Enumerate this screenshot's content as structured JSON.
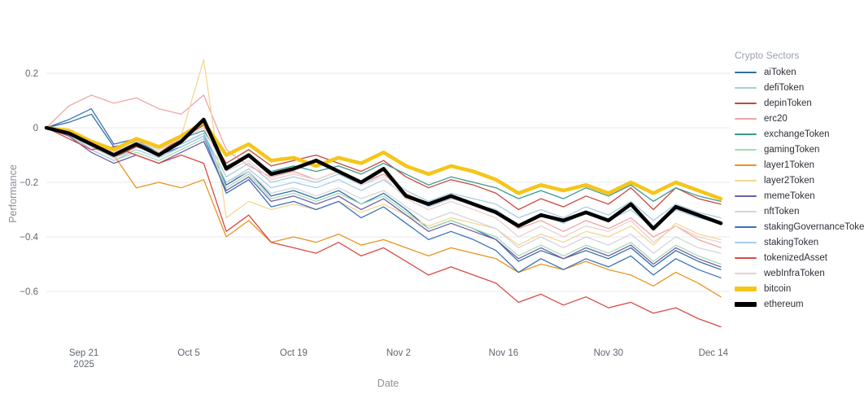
{
  "chart_data": {
    "type": "line",
    "title": "",
    "xlabel": "Date",
    "ylabel": "Performance",
    "legend_title": "Crypto Sectors",
    "x_description": "day offsets from Sep 16 2025; axis ticks show dates",
    "grid": "horizontal-only",
    "ylim": [
      -0.78,
      0.28
    ],
    "x": [
      0,
      3,
      6,
      9,
      12,
      15,
      18,
      21,
      24,
      27,
      30,
      33,
      36,
      39,
      42,
      45,
      48,
      51,
      54,
      57,
      60,
      63,
      66,
      69,
      72,
      75,
      78,
      81,
      84,
      87,
      90
    ],
    "x_ticks": [
      {
        "day": 5,
        "label": "Sep 21",
        "sublabel": "2025"
      },
      {
        "day": 19,
        "label": "Oct 5"
      },
      {
        "day": 33,
        "label": "Oct 19"
      },
      {
        "day": 47,
        "label": "Nov 2"
      },
      {
        "day": 61,
        "label": "Nov 16"
      },
      {
        "day": 75,
        "label": "Nov 30"
      },
      {
        "day": 89,
        "label": "Dec 14"
      }
    ],
    "y_ticks": [
      {
        "value": 0.2,
        "label": "0.2"
      },
      {
        "value": 0,
        "label": "0"
      },
      {
        "value": -0.2,
        "label": "−0.2"
      },
      {
        "value": -0.4,
        "label": "−0.4"
      },
      {
        "value": -0.6,
        "label": "−0.6"
      }
    ],
    "series": [
      {
        "name": "aiToken",
        "color": "#2f6f9f",
        "width": 1.3,
        "values": [
          0,
          0.02,
          0.05,
          -0.07,
          -0.05,
          -0.09,
          -0.06,
          -0.02,
          -0.21,
          -0.16,
          -0.25,
          -0.23,
          -0.26,
          -0.23,
          -0.28,
          -0.24,
          -0.3,
          -0.37,
          -0.34,
          -0.37,
          -0.41,
          -0.49,
          -0.45,
          -0.48,
          -0.45,
          -0.48,
          -0.44,
          -0.51,
          -0.45,
          -0.49,
          -0.52
        ]
      },
      {
        "name": "defiToken",
        "color": "#a6cfdd",
        "width": 1.3,
        "values": [
          0,
          -0.02,
          -0.07,
          -0.11,
          -0.07,
          -0.1,
          -0.06,
          -0.02,
          -0.18,
          -0.13,
          -0.2,
          -0.18,
          -0.2,
          -0.17,
          -0.21,
          -0.17,
          -0.23,
          -0.27,
          -0.24,
          -0.26,
          -0.28,
          -0.33,
          -0.3,
          -0.33,
          -0.29,
          -0.32,
          -0.27,
          -0.34,
          -0.28,
          -0.31,
          -0.33
        ]
      },
      {
        "name": "depinToken",
        "color": "#c9463c",
        "width": 1.3,
        "values": [
          0,
          -0.02,
          -0.07,
          -0.11,
          -0.07,
          -0.09,
          -0.04,
          0.01,
          -0.13,
          -0.08,
          -0.14,
          -0.12,
          -0.1,
          -0.13,
          -0.16,
          -0.12,
          -0.18,
          -0.22,
          -0.19,
          -0.21,
          -0.24,
          -0.3,
          -0.26,
          -0.29,
          -0.25,
          -0.28,
          -0.22,
          -0.3,
          -0.22,
          -0.26,
          -0.28
        ]
      },
      {
        "name": "erc20",
        "color": "#f2a4a4",
        "width": 1.3,
        "values": [
          0,
          0.08,
          0.12,
          0.09,
          0.11,
          0.07,
          0.05,
          0.12,
          -0.08,
          -0.14,
          -0.18,
          -0.16,
          -0.19,
          -0.16,
          -0.2,
          -0.17,
          -0.24,
          -0.28,
          -0.25,
          -0.28,
          -0.31,
          -0.37,
          -0.34,
          -0.38,
          -0.34,
          -0.37,
          -0.33,
          -0.4,
          -0.36,
          -0.41,
          -0.44
        ]
      },
      {
        "name": "exchangeToken",
        "color": "#3b998e",
        "width": 1.3,
        "values": [
          0,
          -0.01,
          -0.06,
          -0.09,
          -0.05,
          -0.08,
          -0.04,
          -0.01,
          -0.14,
          -0.1,
          -0.16,
          -0.14,
          -0.16,
          -0.14,
          -0.17,
          -0.13,
          -0.17,
          -0.21,
          -0.18,
          -0.2,
          -0.22,
          -0.26,
          -0.23,
          -0.26,
          -0.22,
          -0.25,
          -0.21,
          -0.27,
          -0.22,
          -0.25,
          -0.27
        ]
      },
      {
        "name": "gamingToken",
        "color": "#a3dcb4",
        "width": 1.3,
        "values": [
          0,
          -0.03,
          -0.08,
          -0.12,
          -0.09,
          -0.12,
          -0.08,
          -0.04,
          -0.22,
          -0.17,
          -0.26,
          -0.24,
          -0.27,
          -0.24,
          -0.28,
          -0.25,
          -0.31,
          -0.37,
          -0.34,
          -0.37,
          -0.4,
          -0.47,
          -0.43,
          -0.47,
          -0.43,
          -0.46,
          -0.42,
          -0.49,
          -0.43,
          -0.47,
          -0.5
        ]
      },
      {
        "name": "layer1Token",
        "color": "#e8941f",
        "width": 1.3,
        "values": [
          0,
          -0.02,
          -0.06,
          -0.1,
          -0.22,
          -0.2,
          -0.22,
          -0.19,
          -0.4,
          -0.34,
          -0.42,
          -0.4,
          -0.42,
          -0.39,
          -0.43,
          -0.41,
          -0.44,
          -0.47,
          -0.44,
          -0.46,
          -0.48,
          -0.53,
          -0.5,
          -0.52,
          -0.49,
          -0.52,
          -0.54,
          -0.58,
          -0.53,
          -0.57,
          -0.62
        ]
      },
      {
        "name": "layer2Token",
        "color": "#f2d795",
        "width": 1.3,
        "values": [
          0,
          -0.02,
          -0.06,
          -0.1,
          -0.06,
          -0.09,
          -0.03,
          0.25,
          -0.33,
          -0.27,
          -0.3,
          -0.28,
          -0.3,
          -0.27,
          -0.31,
          -0.28,
          -0.32,
          -0.36,
          -0.33,
          -0.35,
          -0.37,
          -0.43,
          -0.39,
          -0.42,
          -0.38,
          -0.4,
          -0.36,
          -0.43,
          -0.35,
          -0.39,
          -0.41
        ]
      },
      {
        "name": "memeToken",
        "color": "#715ca6",
        "width": 1.3,
        "values": [
          0,
          -0.03,
          -0.09,
          -0.13,
          -0.1,
          -0.13,
          -0.09,
          -0.05,
          -0.23,
          -0.18,
          -0.27,
          -0.25,
          -0.28,
          -0.25,
          -0.3,
          -0.26,
          -0.32,
          -0.38,
          -0.35,
          -0.38,
          -0.41,
          -0.48,
          -0.44,
          -0.48,
          -0.44,
          -0.47,
          -0.43,
          -0.5,
          -0.44,
          -0.48,
          -0.51
        ]
      },
      {
        "name": "nftToken",
        "color": "#d4d4dc",
        "width": 1.3,
        "values": [
          0,
          -0.02,
          -0.07,
          -0.11,
          -0.08,
          -0.11,
          -0.07,
          -0.03,
          -0.2,
          -0.16,
          -0.24,
          -0.22,
          -0.25,
          -0.22,
          -0.26,
          -0.23,
          -0.29,
          -0.34,
          -0.31,
          -0.34,
          -0.37,
          -0.44,
          -0.4,
          -0.44,
          -0.4,
          -0.43,
          -0.39,
          -0.46,
          -0.4,
          -0.44,
          -0.46
        ]
      },
      {
        "name": "stakingGovernanceToken",
        "color": "#3a72b8",
        "width": 1.3,
        "values": [
          0,
          0.03,
          0.07,
          -0.06,
          -0.04,
          -0.1,
          -0.07,
          -0.03,
          -0.24,
          -0.19,
          -0.29,
          -0.27,
          -0.3,
          -0.27,
          -0.33,
          -0.29,
          -0.35,
          -0.41,
          -0.38,
          -0.41,
          -0.45,
          -0.53,
          -0.48,
          -0.52,
          -0.48,
          -0.51,
          -0.47,
          -0.54,
          -0.48,
          -0.52,
          -0.55
        ]
      },
      {
        "name": "stakingToken",
        "color": "#a9cde6",
        "width": 1.3,
        "values": [
          0,
          -0.02,
          -0.08,
          -0.12,
          -0.08,
          -0.11,
          -0.07,
          -0.03,
          -0.2,
          -0.15,
          -0.22,
          -0.2,
          -0.22,
          -0.19,
          -0.23,
          -0.19,
          -0.25,
          -0.29,
          -0.26,
          -0.28,
          -0.3,
          -0.36,
          -0.32,
          -0.35,
          -0.31,
          -0.34,
          -0.3,
          -0.37,
          -0.3,
          -0.33,
          -0.35
        ]
      },
      {
        "name": "tokenizedAsset",
        "color": "#d94a45",
        "width": 1.3,
        "values": [
          0,
          -0.04,
          -0.08,
          -0.07,
          -0.1,
          -0.13,
          -0.1,
          -0.13,
          -0.38,
          -0.32,
          -0.42,
          -0.44,
          -0.46,
          -0.42,
          -0.47,
          -0.44,
          -0.49,
          -0.54,
          -0.51,
          -0.54,
          -0.57,
          -0.64,
          -0.61,
          -0.65,
          -0.62,
          -0.66,
          -0.64,
          -0.68,
          -0.66,
          -0.7,
          -0.73
        ]
      },
      {
        "name": "webInfraToken",
        "color": "#ecd0d0",
        "width": 1.3,
        "values": [
          0,
          -0.01,
          -0.05,
          -0.09,
          -0.05,
          -0.08,
          -0.04,
          0.0,
          -0.16,
          -0.12,
          -0.19,
          -0.17,
          -0.19,
          -0.16,
          -0.21,
          -0.18,
          -0.26,
          -0.3,
          -0.27,
          -0.3,
          -0.33,
          -0.4,
          -0.36,
          -0.4,
          -0.36,
          -0.38,
          -0.34,
          -0.42,
          -0.36,
          -0.4,
          -0.42
        ]
      },
      {
        "name": "bitcoin",
        "color": "#f5c518",
        "width": 4.5,
        "values": [
          0,
          -0.01,
          -0.05,
          -0.08,
          -0.04,
          -0.07,
          -0.03,
          0.02,
          -0.1,
          -0.06,
          -0.12,
          -0.11,
          -0.14,
          -0.11,
          -0.13,
          -0.09,
          -0.14,
          -0.17,
          -0.14,
          -0.16,
          -0.19,
          -0.24,
          -0.21,
          -0.23,
          -0.21,
          -0.24,
          -0.2,
          -0.24,
          -0.2,
          -0.23,
          -0.26
        ]
      },
      {
        "name": "ethereum",
        "color": "#000000",
        "width": 4.5,
        "values": [
          0,
          -0.02,
          -0.06,
          -0.1,
          -0.06,
          -0.1,
          -0.05,
          0.03,
          -0.15,
          -0.1,
          -0.17,
          -0.15,
          -0.12,
          -0.16,
          -0.2,
          -0.15,
          -0.25,
          -0.28,
          -0.25,
          -0.28,
          -0.31,
          -0.36,
          -0.32,
          -0.34,
          -0.31,
          -0.34,
          -0.28,
          -0.37,
          -0.29,
          -0.32,
          -0.35
        ]
      }
    ],
    "legend_position": "right",
    "colors": {
      "gridline": "#e9e9ef",
      "tick_text": "#5f6670",
      "axis_title_text": "#8b909a",
      "legend_title_text": "#9aa0ab",
      "legend_label_text": "#2b2f36"
    }
  }
}
